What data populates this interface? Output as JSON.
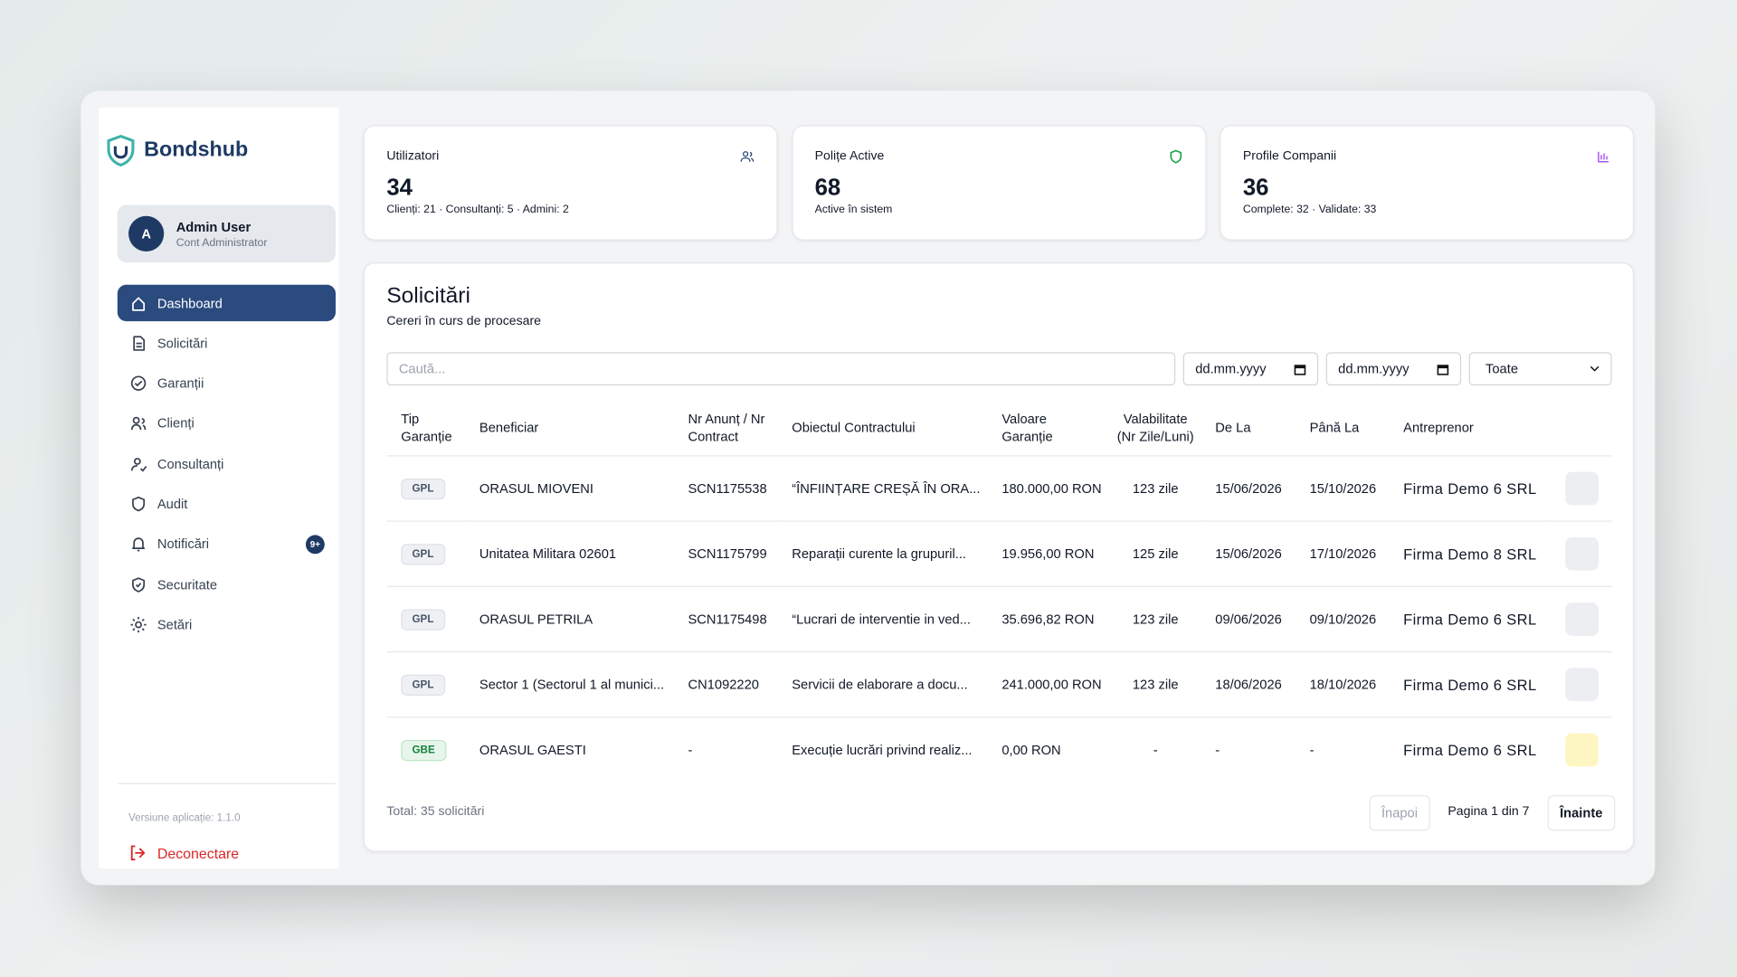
{
  "brand": "Bondshub",
  "user": {
    "initial": "A",
    "name": "Admin User",
    "role": "Cont Administrator"
  },
  "nav": {
    "items": [
      {
        "label": "Dashboard"
      },
      {
        "label": "Solicitări"
      },
      {
        "label": "Garanții"
      },
      {
        "label": "Clienți"
      },
      {
        "label": "Consultanți"
      },
      {
        "label": "Audit"
      },
      {
        "label": "Notificări",
        "badge": "9+"
      },
      {
        "label": "Securitate"
      },
      {
        "label": "Setări"
      }
    ]
  },
  "footer": {
    "version": "Versiune aplicație: 1.1.0",
    "logout": "Deconectare"
  },
  "stats": [
    {
      "label": "Utilizatori",
      "value": "34",
      "detail": "Clienți: 21 · Consultanți: 5 · Admini: 2"
    },
    {
      "label": "Polițe Active",
      "value": "68",
      "detail": "Active în sistem"
    },
    {
      "label": "Profile Companii",
      "value": "36",
      "detail": "Complete: 32 · Validate: 33"
    }
  ],
  "requests": {
    "title": "Solicitări",
    "subtitle": "Cereri în curs de procesare"
  },
  "filters": {
    "search": "Caută...",
    "date_from": "dd.mm.yyyy",
    "date_to": "dd.mm.yyyy",
    "status": "Toate"
  },
  "table": {
    "columns": [
      "Tip Garanție",
      "Beneficiar",
      "Nr Anunț / Nr Contract",
      "Obiectul Contractului",
      "Valoare Garanție",
      "Valabilitate (Nr Zile/Luni)",
      "De La",
      "Până La",
      "Antreprenor"
    ],
    "rows": [
      [
        "GPL",
        "ORASUL MIOVENI",
        "SCN1175538",
        "“ÎNFIINȚARE CREȘĂ ÎN ORA...",
        "180.000,00 RON",
        "123 zile",
        "15/06/2026",
        "15/10/2026",
        "Firma Demo 6 SRL"
      ],
      [
        "GPL",
        "Unitatea Militara 02601",
        "SCN1175799",
        "Reparații curente la grupuril...",
        "19.956,00 RON",
        "125 zile",
        "15/06/2026",
        "17/10/2026",
        "Firma Demo 8 SRL"
      ],
      [
        "GPL",
        "ORASUL PETRILA",
        "SCN1175498",
        "“Lucrari de interventie in ved...",
        "35.696,82 RON",
        "123 zile",
        "09/06/2026",
        "09/10/2026",
        "Firma Demo 6 SRL"
      ],
      [
        "GPL",
        "Sector 1 (Sectorul 1 al munici...",
        "CN1092220",
        "Servicii de elaborare a docu...",
        "241.000,00 RON",
        "123 zile",
        "18/06/2026",
        "18/10/2026",
        "Firma Demo 6 SRL"
      ],
      [
        "GBE",
        "ORASUL GAESTI",
        "-",
        "Execuție lucrări privind realiz...",
        "0,00 RON",
        "-",
        "-",
        "-",
        "Firma Demo 6 SRL"
      ]
    ]
  },
  "pagination": {
    "total": "Total: 35 solicitări",
    "prev": "Înapoi",
    "page": "Pagina 1 din 7",
    "next": "Înainte"
  }
}
